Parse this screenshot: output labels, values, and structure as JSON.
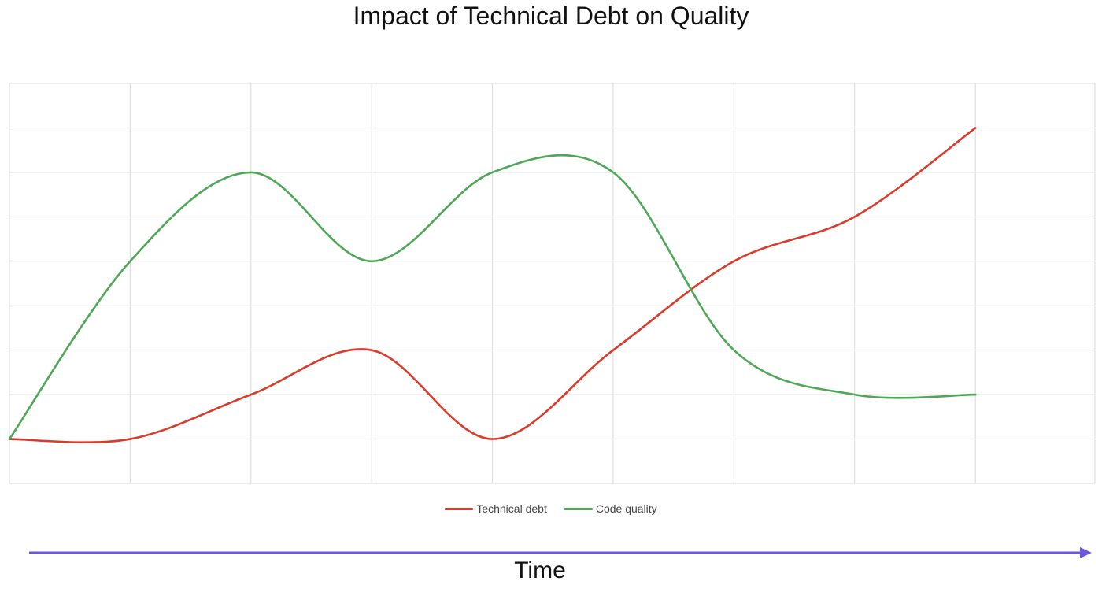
{
  "chart_data": {
    "type": "line",
    "title": "Impact of Technical Debt on Quality",
    "xlabel": "Time",
    "ylabel": "",
    "x": [
      0,
      1,
      2,
      3,
      4,
      5,
      6,
      7,
      8
    ],
    "xlim": [
      0,
      9
    ],
    "ylim": [
      0,
      9
    ],
    "grid": true,
    "legend_position": "bottom",
    "series": [
      {
        "name": "Technical debt",
        "color": "#d93a2b",
        "values": [
          1,
          1,
          2,
          3,
          1,
          3,
          5,
          6,
          8
        ]
      },
      {
        "name": "Code quality",
        "color": "#4ea756",
        "values": [
          1,
          5,
          7,
          5,
          7,
          7,
          3,
          2,
          2
        ]
      }
    ],
    "time_arrow_color": "#6b56e0"
  }
}
